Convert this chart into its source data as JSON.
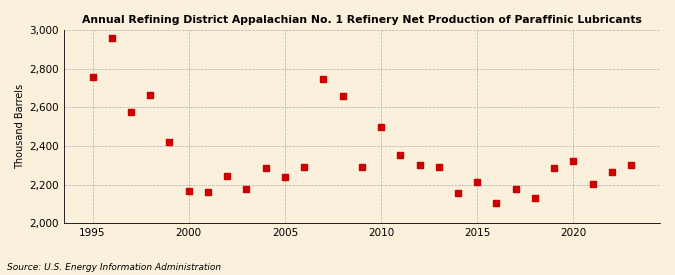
{
  "title": "Annual Refining District Appalachian No. 1 Refinery Net Production of Paraffinic Lubricants",
  "ylabel": "Thousand Barrels",
  "source": "Source: U.S. Energy Information Administration",
  "background_color": "#faf0dc",
  "years": [
    1995,
    1996,
    1997,
    1998,
    1999,
    2000,
    2001,
    2002,
    2003,
    2004,
    2005,
    2006,
    2007,
    2008,
    2009,
    2010,
    2011,
    2012,
    2013,
    2014,
    2015,
    2016,
    2017,
    2018,
    2019,
    2020,
    2021,
    2022,
    2023
  ],
  "values": [
    2755,
    2960,
    2575,
    2665,
    2420,
    2165,
    2160,
    2245,
    2175,
    2285,
    2240,
    2290,
    2745,
    2660,
    2290,
    2500,
    2355,
    2300,
    2290,
    2155,
    2215,
    2105,
    2175,
    2130,
    2285,
    2320,
    2205,
    2265,
    2300
  ],
  "marker_color": "#cc0000",
  "marker_size": 4,
  "ylim": [
    2000,
    3000
  ],
  "yticks": [
    2000,
    2200,
    2400,
    2600,
    2800,
    3000
  ],
  "xticks": [
    1995,
    2000,
    2005,
    2010,
    2015,
    2020
  ],
  "xlim": [
    1993.5,
    2024.5
  ]
}
